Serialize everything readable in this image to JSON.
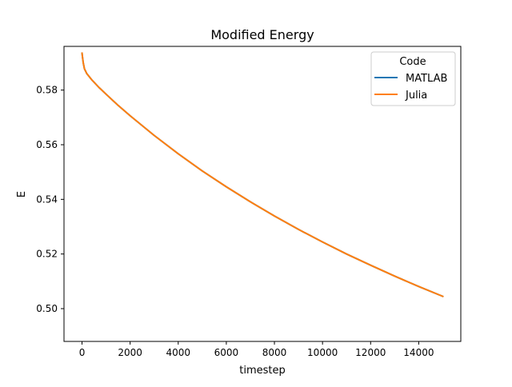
{
  "chart_data": {
    "type": "line",
    "title": "Modified Energy",
    "xlabel": "timestep",
    "ylabel": "E",
    "xlim": [
      -750,
      15750
    ],
    "ylim": [
      0.488,
      0.596
    ],
    "xticks": [
      0,
      2000,
      4000,
      6000,
      8000,
      10000,
      12000,
      14000
    ],
    "yticks": [
      0.5,
      0.52,
      0.54,
      0.56,
      0.58
    ],
    "xtick_labels": [
      "0",
      "2000",
      "4000",
      "6000",
      "8000",
      "10000",
      "12000",
      "14000"
    ],
    "ytick_labels": [
      "0.50",
      "0.52",
      "0.54",
      "0.56",
      "0.58"
    ],
    "grid": false,
    "legend": {
      "title": "Code",
      "placement": "top-right"
    },
    "series": [
      {
        "name": "MATLAB",
        "color": "#1f77b4",
        "x": [
          0,
          20,
          50,
          100,
          200,
          400,
          700,
          1000,
          1500,
          2000,
          3000,
          4000,
          5000,
          6000,
          7000,
          8000,
          9000,
          10000,
          11000,
          12000,
          13000,
          14000,
          15000
        ],
        "y": [
          0.5935,
          0.592,
          0.59,
          0.5878,
          0.586,
          0.5838,
          0.581,
          0.5785,
          0.5744,
          0.5706,
          0.5634,
          0.5567,
          0.5504,
          0.5446,
          0.5391,
          0.5339,
          0.529,
          0.5244,
          0.52,
          0.5159,
          0.5119,
          0.5081,
          0.5045
        ]
      },
      {
        "name": "Julia",
        "color": "#ff7f0e",
        "x": [
          0,
          20,
          50,
          100,
          200,
          400,
          700,
          1000,
          1500,
          2000,
          3000,
          4000,
          5000,
          6000,
          7000,
          8000,
          9000,
          10000,
          11000,
          12000,
          13000,
          14000,
          15000
        ],
        "y": [
          0.5935,
          0.592,
          0.59,
          0.5878,
          0.586,
          0.5838,
          0.581,
          0.5785,
          0.5744,
          0.5706,
          0.5634,
          0.5567,
          0.5504,
          0.5446,
          0.5391,
          0.5339,
          0.529,
          0.5244,
          0.52,
          0.5159,
          0.5119,
          0.5081,
          0.5045
        ]
      }
    ]
  }
}
